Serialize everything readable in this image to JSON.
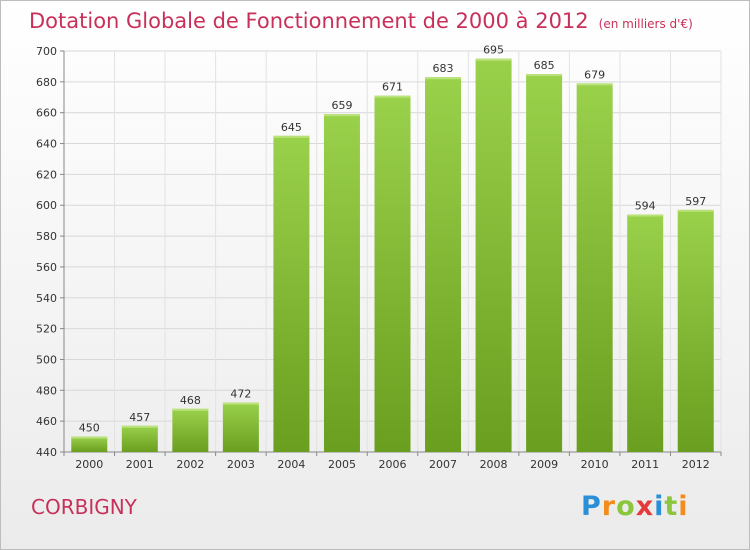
{
  "header": {
    "title": "Dotation Globale de Fonctionnement de 2000 à 2012",
    "unit": "(en milliers d'€)"
  },
  "footer": {
    "city": "CORBIGNY",
    "logo": {
      "P": "P",
      "r": "r",
      "o": "o",
      "x": "x",
      "i": "i",
      "t": "t",
      "i2": "i"
    }
  },
  "colors": {
    "bar_light": "#9ad14b",
    "bar_dark": "#6a9e1f",
    "title": "#c8305a",
    "grid": "#d8d8d8"
  },
  "chart_data": {
    "type": "bar",
    "categories": [
      "2000",
      "2001",
      "2002",
      "2003",
      "2004",
      "2005",
      "2006",
      "2007",
      "2008",
      "2009",
      "2010",
      "2011",
      "2012"
    ],
    "values": [
      450,
      457,
      468,
      472,
      645,
      659,
      671,
      683,
      695,
      685,
      679,
      594,
      597
    ],
    "ylim": [
      440,
      700
    ],
    "yticks": [
      440,
      460,
      480,
      500,
      520,
      540,
      560,
      580,
      600,
      620,
      640,
      660,
      680,
      700
    ],
    "grid": true
  }
}
